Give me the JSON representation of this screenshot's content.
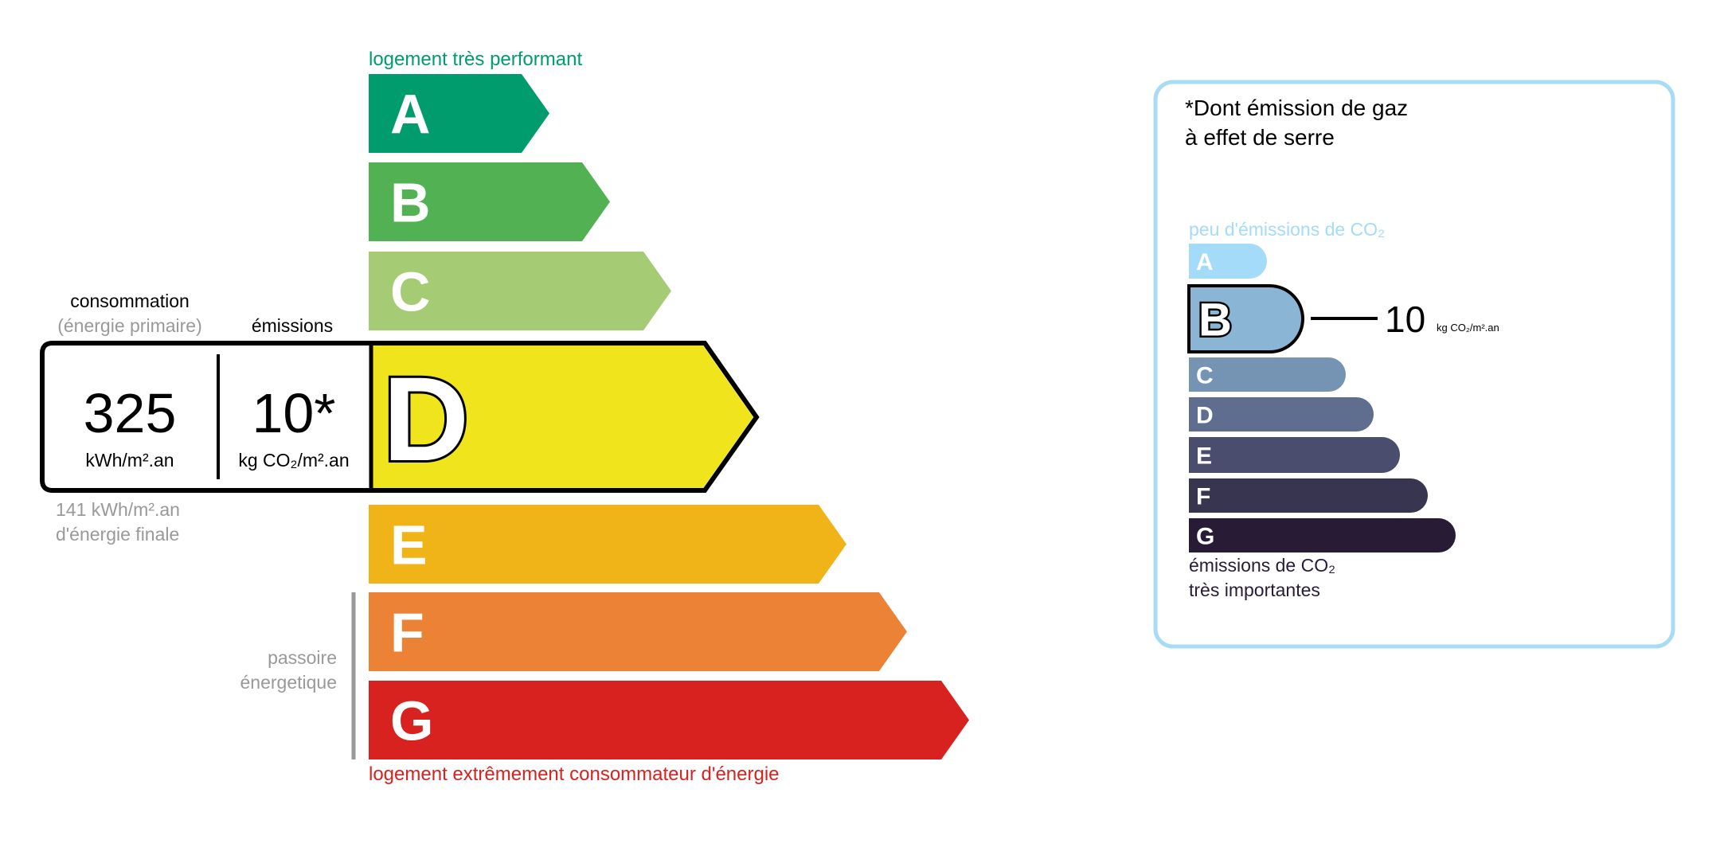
{
  "energy": {
    "top_label": "logement très performant",
    "bottom_label": "logement extrêmement consommateur d'énergie",
    "passoire_label": [
      "passoire",
      "énergetique"
    ],
    "classes": [
      {
        "letter": "A",
        "color": "#009c6d"
      },
      {
        "letter": "B",
        "color": "#52b153"
      },
      {
        "letter": "C",
        "color": "#a5cc74"
      },
      {
        "letter": "D",
        "color": "#f0e51c"
      },
      {
        "letter": "E",
        "color": "#f0b418"
      },
      {
        "letter": "F",
        "color": "#eb8235"
      },
      {
        "letter": "G",
        "color": "#d7221f"
      }
    ],
    "current_class": "D",
    "consumption_label": "consommation",
    "consumption_sublabel": "(énergie primaire)",
    "emissions_label": "émissions",
    "consumption_value": "325",
    "consumption_unit": "kWh/m².an",
    "emissions_value": "10*",
    "emissions_unit": "kg CO₂/m².an",
    "final_energy_value": "141 kWh/m².an",
    "final_energy_label": "d'énergie finale"
  },
  "ghg": {
    "title": [
      "*Dont émission de gaz",
      "à effet de serre"
    ],
    "top_label": "peu d'émissions de CO₂",
    "bottom_label": [
      "émissions de CO₂",
      "très importantes"
    ],
    "border_color": "#a8dcf5",
    "classes": [
      {
        "letter": "A",
        "color": "#a4dbf8"
      },
      {
        "letter": "B",
        "color": "#8ab5d5"
      },
      {
        "letter": "C",
        "color": "#7593b3"
      },
      {
        "letter": "D",
        "color": "#5f6e8f"
      },
      {
        "letter": "E",
        "color": "#4b4d6e"
      },
      {
        "letter": "F",
        "color": "#383551"
      },
      {
        "letter": "G",
        "color": "#281b35"
      }
    ],
    "current_class": "B",
    "value": "10",
    "unit": "kg CO₂/m².an"
  }
}
